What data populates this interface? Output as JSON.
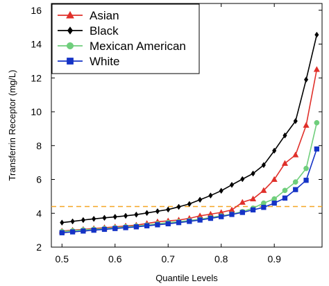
{
  "chart_data": {
    "type": "line",
    "xlabel": "Quantile Levels",
    "ylabel": "Transferrin Receptor (mg/L)",
    "xlim": [
      0.48,
      0.99
    ],
    "ylim": [
      2.0,
      16.4
    ],
    "xticks": [
      "0.5",
      "0.6",
      "0.7",
      "0.8",
      "0.9"
    ],
    "xtick_values": [
      0.5,
      0.6,
      0.7,
      0.8,
      0.9
    ],
    "yticks": [
      "2",
      "4",
      "6",
      "8",
      "10",
      "12",
      "14",
      "16"
    ],
    "ytick_values": [
      2,
      4,
      6,
      8,
      10,
      12,
      14,
      16
    ],
    "reference_line": {
      "y": 4.4,
      "color": "#f5a623",
      "style": "dashed"
    },
    "legend_position": "top-left",
    "x": [
      0.5,
      0.52,
      0.54,
      0.56,
      0.58,
      0.6,
      0.62,
      0.64,
      0.66,
      0.68,
      0.7,
      0.72,
      0.74,
      0.76,
      0.78,
      0.8,
      0.82,
      0.84,
      0.86,
      0.88,
      0.9,
      0.92,
      0.94,
      0.96,
      0.98
    ],
    "series": [
      {
        "name": "Asian",
        "color": "#e0302a",
        "marker": "triangle",
        "values": [
          2.95,
          3.0,
          3.05,
          3.1,
          3.15,
          3.2,
          3.25,
          3.3,
          3.4,
          3.5,
          3.55,
          3.6,
          3.7,
          3.85,
          3.95,
          4.05,
          4.2,
          4.65,
          4.85,
          5.35,
          6.0,
          6.95,
          7.45,
          9.2,
          12.5
        ]
      },
      {
        "name": "Black",
        "color": "#000000",
        "marker": "diamond",
        "values": [
          3.45,
          3.52,
          3.6,
          3.67,
          3.73,
          3.79,
          3.85,
          3.92,
          4.02,
          4.12,
          4.22,
          4.38,
          4.55,
          4.8,
          5.05,
          5.33,
          5.68,
          6.02,
          6.35,
          6.85,
          7.7,
          8.6,
          9.45,
          11.9,
          14.55
        ]
      },
      {
        "name": "Mexican American",
        "color": "#6fce7c",
        "marker": "circle",
        "values": [
          2.92,
          2.97,
          3.02,
          3.06,
          3.1,
          3.15,
          3.2,
          3.25,
          3.3,
          3.38,
          3.45,
          3.5,
          3.57,
          3.65,
          3.75,
          3.85,
          3.95,
          4.1,
          4.3,
          4.6,
          4.85,
          5.35,
          5.85,
          6.65,
          9.35
        ]
      },
      {
        "name": "White",
        "color": "#1533c6",
        "marker": "square",
        "values": [
          2.85,
          2.9,
          2.95,
          3.0,
          3.05,
          3.1,
          3.15,
          3.2,
          3.26,
          3.32,
          3.38,
          3.45,
          3.52,
          3.6,
          3.7,
          3.8,
          3.93,
          4.05,
          4.2,
          4.35,
          4.6,
          4.9,
          5.4,
          5.95,
          7.8
        ]
      }
    ]
  }
}
